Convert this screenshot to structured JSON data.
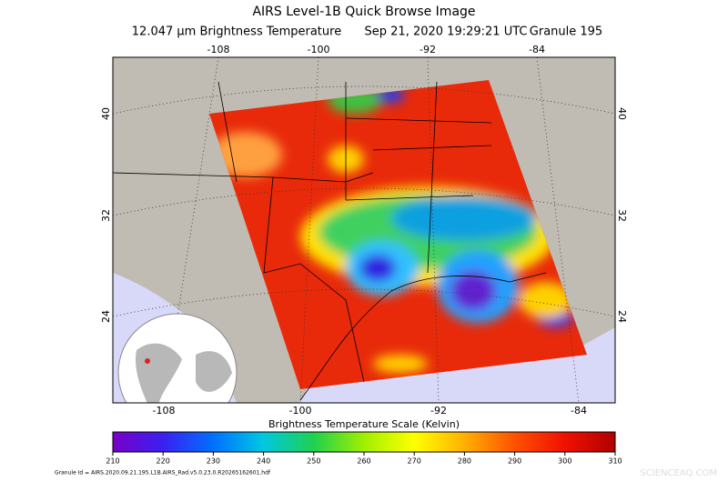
{
  "title": "AIRS Level-1B Quick Browse Image",
  "subtitle": {
    "product": "12.047 μm Brightness Temperature",
    "time": "Sep 21, 2020 19:29:21 UTC",
    "granule": "Granule 195"
  },
  "map": {
    "lon_top": [
      -108,
      -100,
      -92,
      -84
    ],
    "lon_bottom": [
      -108,
      -100,
      -92,
      -84
    ],
    "lat_left": [
      40,
      32,
      24
    ],
    "lat_right": [
      40,
      32,
      24
    ]
  },
  "colorbar": {
    "label": "Brightness Temperature Scale (Kelvin)",
    "range": [
      210,
      310
    ],
    "ticks": [
      210,
      220,
      230,
      240,
      250,
      260,
      270,
      280,
      290,
      300,
      310
    ],
    "colors": [
      "#7a00c8",
      "#3a20f0",
      "#0070ff",
      "#00c8e0",
      "#20d050",
      "#a0f000",
      "#ffff00",
      "#ffb000",
      "#ff5000",
      "#f01000",
      "#b00000"
    ]
  },
  "footer": {
    "granule_id": "Granule Id = AIRS.2020.09.21.195.L1B.AIRS_Rad.v5.0.23.0.R20265162601.hdf",
    "watermark": "SCIENCEAQ.COM"
  }
}
